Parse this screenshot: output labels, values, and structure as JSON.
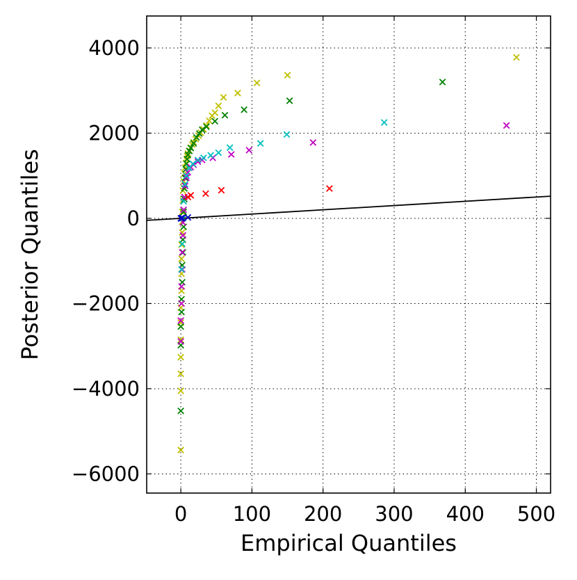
{
  "chart_data": {
    "type": "scatter",
    "title": "",
    "xlabel": "Empirical Quantiles",
    "ylabel": "Posterior Quantiles",
    "xlim": [
      -48,
      520
    ],
    "ylim": [
      -6450,
      4750
    ],
    "xticks": [
      0,
      100,
      200,
      300,
      400,
      500
    ],
    "yticks": [
      -6000,
      -4000,
      -2000,
      0,
      2000,
      4000
    ],
    "xtick_labels": [
      "0",
      "100",
      "200",
      "300",
      "400",
      "500"
    ],
    "ytick_labels": [
      "−6000",
      "−4000",
      "−2000",
      "0",
      "2000",
      "4000"
    ],
    "grid": true,
    "legend": "none",
    "reference_line": {
      "color": "#000000",
      "slope": 1,
      "intercept": 0
    },
    "series": [
      {
        "color": "#bfbf00",
        "points": [
          [
            0,
            -5440
          ],
          [
            0,
            -4050
          ],
          [
            0,
            -3650
          ],
          [
            0,
            -3260
          ],
          [
            0,
            -2850
          ],
          [
            0,
            -2450
          ],
          [
            0,
            -2100
          ],
          [
            1,
            -1700
          ],
          [
            1,
            -1300
          ],
          [
            1,
            -950
          ],
          [
            1,
            -620
          ],
          [
            2,
            -330
          ],
          [
            2,
            -80
          ],
          [
            2,
            150
          ],
          [
            3,
            420
          ],
          [
            3,
            650
          ],
          [
            4,
            870
          ],
          [
            5,
            1050
          ],
          [
            6,
            1190
          ],
          [
            7,
            1300
          ],
          [
            8,
            1390
          ],
          [
            9,
            1460
          ],
          [
            10,
            1520
          ],
          [
            12,
            1590
          ],
          [
            14,
            1660
          ],
          [
            16,
            1730
          ],
          [
            18,
            1790
          ],
          [
            21,
            1860
          ],
          [
            25,
            1940
          ],
          [
            28,
            2010
          ],
          [
            32,
            2090
          ],
          [
            36,
            2180
          ],
          [
            40,
            2290
          ],
          [
            44,
            2410
          ],
          [
            48,
            2480
          ],
          [
            53,
            2640
          ],
          [
            60,
            2840
          ],
          [
            80,
            2940
          ],
          [
            107,
            3180
          ],
          [
            150,
            3360
          ],
          [
            472,
            3780
          ]
        ]
      },
      {
        "color": "#008000",
        "points": [
          [
            0,
            -4520
          ],
          [
            0,
            -2980
          ],
          [
            0,
            -2540
          ],
          [
            1,
            -2200
          ],
          [
            1,
            -1900
          ],
          [
            2,
            -1500
          ],
          [
            2,
            -1100
          ],
          [
            3,
            -800
          ],
          [
            3,
            -500
          ],
          [
            4,
            -200
          ],
          [
            4,
            150
          ],
          [
            5,
            450
          ],
          [
            5,
            700
          ],
          [
            6,
            950
          ],
          [
            7,
            1150
          ],
          [
            8,
            1280
          ],
          [
            9,
            1390
          ],
          [
            10,
            1490
          ],
          [
            12,
            1580
          ],
          [
            14,
            1650
          ],
          [
            18,
            1760
          ],
          [
            22,
            1900
          ],
          [
            26,
            1990
          ],
          [
            30,
            2080
          ],
          [
            36,
            2150
          ],
          [
            48,
            2280
          ],
          [
            62,
            2420
          ],
          [
            89,
            2550
          ],
          [
            153,
            2760
          ],
          [
            368,
            3200
          ]
        ]
      },
      {
        "color": "#bf00bf",
        "points": [
          [
            0,
            -2890
          ],
          [
            0,
            -2400
          ],
          [
            1,
            -2000
          ],
          [
            1,
            -1600
          ],
          [
            2,
            -1200
          ],
          [
            2,
            -800
          ],
          [
            3,
            -400
          ],
          [
            3,
            -100
          ],
          [
            4,
            200
          ],
          [
            5,
            500
          ],
          [
            6,
            760
          ],
          [
            8,
            950
          ],
          [
            10,
            1080
          ],
          [
            14,
            1200
          ],
          [
            18,
            1260
          ],
          [
            24,
            1330
          ],
          [
            30,
            1370
          ],
          [
            45,
            1420
          ],
          [
            71,
            1500
          ],
          [
            96,
            1600
          ],
          [
            186,
            1780
          ],
          [
            458,
            2180
          ]
        ]
      },
      {
        "color": "#00bfbf",
        "points": [
          [
            1,
            -1200
          ],
          [
            2,
            -600
          ],
          [
            3,
            0
          ],
          [
            4,
            400
          ],
          [
            6,
            800
          ],
          [
            8,
            1000
          ],
          [
            12,
            1180
          ],
          [
            17,
            1280
          ],
          [
            24,
            1370
          ],
          [
            32,
            1420
          ],
          [
            42,
            1480
          ],
          [
            53,
            1540
          ],
          [
            69,
            1660
          ],
          [
            112,
            1760
          ],
          [
            149,
            1970
          ],
          [
            286,
            2250
          ]
        ]
      },
      {
        "color": "#ff0000",
        "points": [
          [
            10,
            500
          ],
          [
            14,
            540
          ],
          [
            35,
            580
          ],
          [
            57,
            660
          ],
          [
            209,
            700
          ]
        ]
      },
      {
        "color": "#0000bf",
        "points": [
          [
            0,
            0
          ],
          [
            1,
            0
          ],
          [
            2,
            10
          ],
          [
            10,
            20
          ]
        ]
      }
    ]
  }
}
